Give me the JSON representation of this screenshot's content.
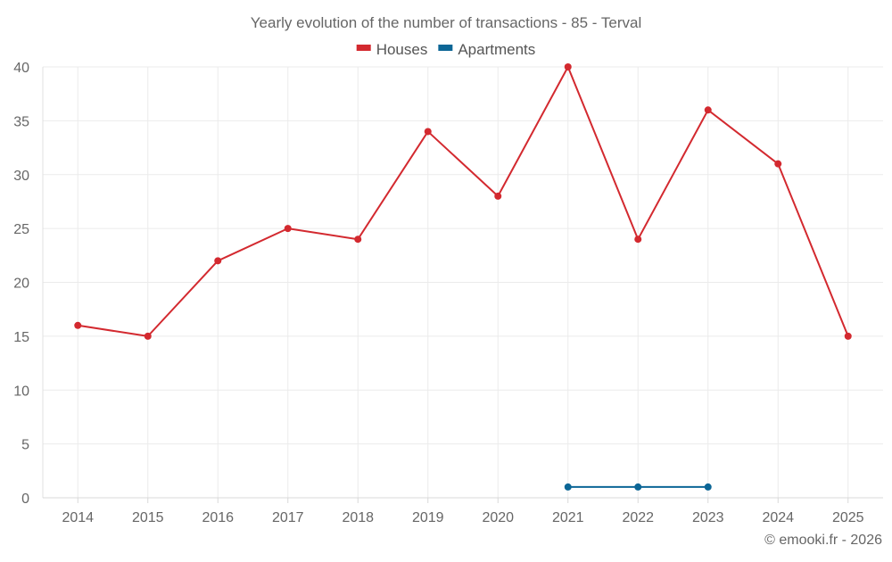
{
  "chart_data": {
    "type": "line",
    "title": "Yearly evolution of the number of transactions - 85 - Terval",
    "categories": [
      "2014",
      "2015",
      "2016",
      "2017",
      "2018",
      "2019",
      "2020",
      "2021",
      "2022",
      "2023",
      "2024",
      "2025"
    ],
    "series": [
      {
        "name": "Houses",
        "color": "#d3292f",
        "values": [
          16,
          15,
          22,
          25,
          24,
          34,
          28,
          40,
          24,
          36,
          31,
          15
        ]
      },
      {
        "name": "Apartments",
        "color": "#0c6696",
        "values": [
          null,
          null,
          null,
          null,
          null,
          null,
          null,
          1,
          1,
          1,
          null,
          null
        ]
      }
    ],
    "ylim": [
      0,
      40
    ],
    "yticks": [
      0,
      5,
      10,
      15,
      20,
      25,
      30,
      35,
      40
    ],
    "xlabel": "",
    "ylabel": "",
    "grid": true,
    "legend": "top-center",
    "credit": "© emooki.fr - 2026"
  }
}
